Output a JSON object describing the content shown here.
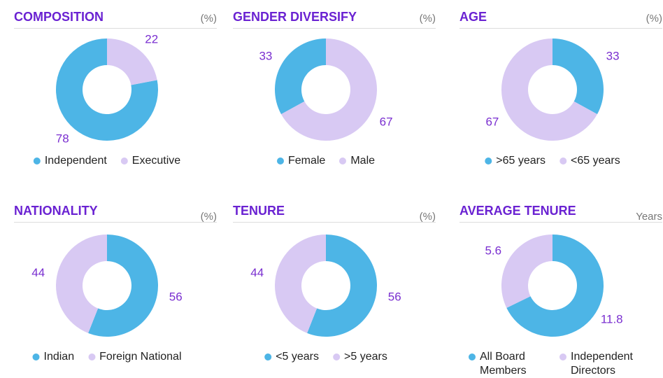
{
  "chart_data": [
    {
      "type": "pie",
      "title": "COMPOSITION",
      "unit": "(%)",
      "direction": "counterclockwise",
      "categories": [
        "Independent",
        "Executive"
      ],
      "values": [
        78,
        22
      ],
      "colors": [
        "#4db5e6",
        "#d8c9f3"
      ]
    },
    {
      "type": "pie",
      "title": "GENDER DIVERSIFY",
      "unit": "(%)",
      "direction": "counterclockwise",
      "categories": [
        "Female",
        "Male"
      ],
      "values": [
        33,
        67
      ],
      "colors": [
        "#4db5e6",
        "#d8c9f3"
      ]
    },
    {
      "type": "pie",
      "title": "AGE",
      "unit": "(%)",
      "direction": "clockwise",
      "categories": [
        ">65 years",
        "<65 years"
      ],
      "values": [
        33,
        67
      ],
      "colors": [
        "#4db5e6",
        "#d8c9f3"
      ]
    },
    {
      "type": "pie",
      "title": "NATIONALITY",
      "unit": "(%)",
      "direction": "clockwise",
      "categories": [
        "Indian",
        "Foreign National"
      ],
      "values": [
        56,
        44
      ],
      "colors": [
        "#4db5e6",
        "#d8c9f3"
      ]
    },
    {
      "type": "pie",
      "title": "TENURE",
      "unit": "(%)",
      "direction": "clockwise",
      "categories": [
        "<5 years",
        ">5 years"
      ],
      "values": [
        56,
        44
      ],
      "colors": [
        "#4db5e6",
        "#d8c9f3"
      ]
    },
    {
      "type": "pie",
      "title": "AVERAGE TENURE",
      "unit": "Years",
      "direction": "clockwise",
      "categories": [
        "All Board Members",
        "Independent Directors"
      ],
      "values": [
        11.8,
        5.6
      ],
      "colors": [
        "#4db5e6",
        "#d8c9f3"
      ]
    }
  ]
}
